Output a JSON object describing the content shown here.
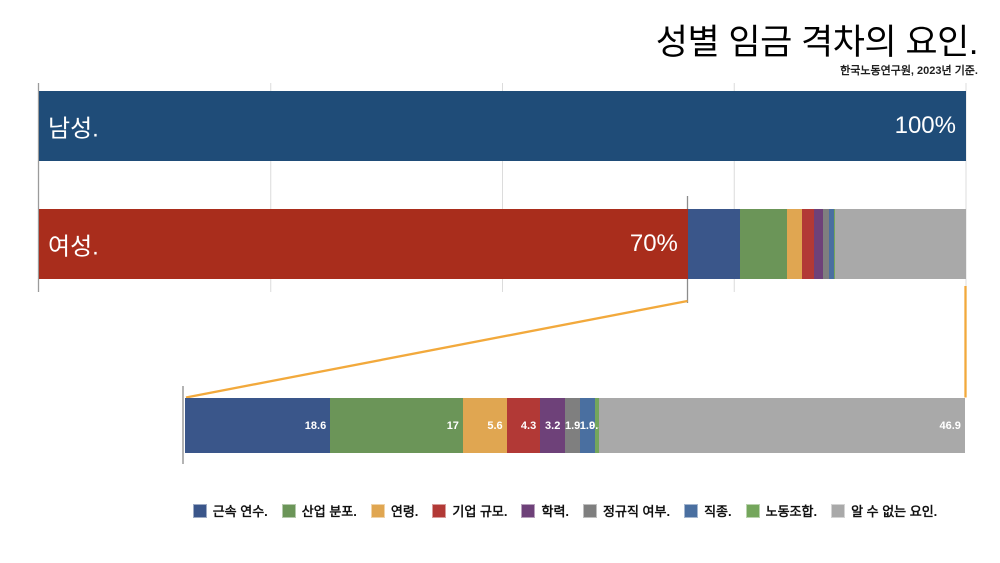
{
  "header": {
    "title": "성별 임금 격차의 요인.",
    "source": "한국노동연구원, 2023년 기준."
  },
  "chart_data": {
    "type": "bar",
    "orientation": "horizontal",
    "title": "성별 임금 격차의 요인.",
    "subtitle": "한국노동연구원, 2023년 기준.",
    "xlim": [
      0,
      100
    ],
    "gridlines_pct": [
      0,
      25,
      50,
      75,
      100
    ],
    "grid": "vertical light gray lines, no tick labels",
    "bars": [
      {
        "label": "남성.",
        "value": 100,
        "value_label": "100%",
        "color": "#1F4C78"
      },
      {
        "label": "여성.",
        "value": 70,
        "value_label": "70%",
        "color": "#A92D1C"
      }
    ],
    "gap_note_visual": "remaining 30% of female bar is stacked by gap factors; a magnified breakdown bar below is linked with orange connector lines",
    "gap_breakdown": {
      "total": 100,
      "segments": [
        {
          "label": "근속 연수.",
          "value": 18.6,
          "value_label": "18.6",
          "color": "#3A568A"
        },
        {
          "label": "산업 분포.",
          "value": 17,
          "value_label": "17",
          "color": "#6B9558"
        },
        {
          "label": "연령.",
          "value": 5.6,
          "value_label": "5.6",
          "color": "#E0A651"
        },
        {
          "label": "기업 규모.",
          "value": 4.3,
          "value_label": "4.3",
          "color": "#B23936"
        },
        {
          "label": "학력.",
          "value": 3.2,
          "value_label": "3.2",
          "color": "#6E4179"
        },
        {
          "label": "정규직 여부.",
          "value": 1.9,
          "value_label": "1.9",
          "color": "#7F7F7F"
        },
        {
          "label": "직종.",
          "value": 1.9,
          "value_label": "1.9",
          "color": "#4A6FA0"
        },
        {
          "label": "노동조합.",
          "value": 0.5,
          "value_label": "0.5",
          "color": "#74A65C"
        },
        {
          "label": "알 수 없는 요인.",
          "value": 46.9,
          "value_label": "46.9",
          "color": "#A9A9A9"
        }
      ]
    },
    "legend_position": "bottom center, single row"
  },
  "colors": {
    "connector": "#F2A93C",
    "gridline": "#DCDCDC",
    "axis": "#9B9B9B",
    "tick": "#8C8C8C",
    "background": "#FFFFFF"
  }
}
